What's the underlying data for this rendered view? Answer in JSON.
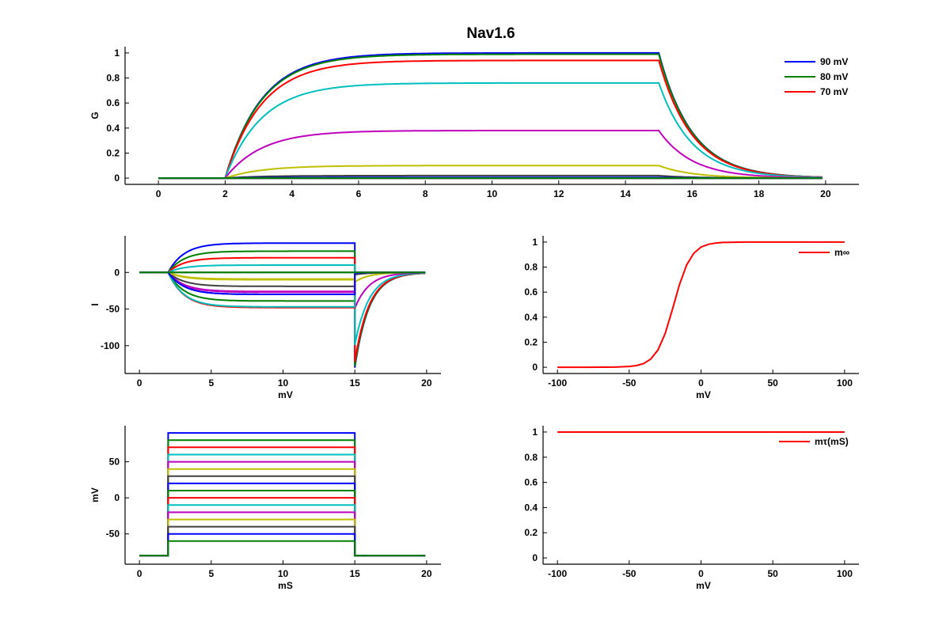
{
  "figure": {
    "title": "Nav1.6"
  },
  "colors": {
    "blue": "#0000ff",
    "green": "#008000",
    "red": "#ff0000",
    "cyan": "#00bfbf",
    "magenta": "#bf00bf",
    "yellow": "#bfbf00",
    "gray": "#404040"
  },
  "traces": [
    {
      "step_mV": 90,
      "color": "#0000ff",
      "G_ss": 1.0,
      "I_ss": 40,
      "I_tail": -130
    },
    {
      "step_mV": 80,
      "color": "#008000",
      "G_ss": 0.99,
      "I_ss": 29,
      "I_tail": -128
    },
    {
      "step_mV": 70,
      "color": "#ff0000",
      "G_ss": 0.94,
      "I_ss": 20,
      "I_tail": -122
    },
    {
      "step_mV": 60,
      "color": "#00bfbf",
      "G_ss": 0.76,
      "I_ss": 10,
      "I_tail": -99
    },
    {
      "step_mV": 50,
      "color": "#bf00bf",
      "G_ss": 0.38,
      "I_ss": -26,
      "I_tail": -49
    },
    {
      "step_mV": 40,
      "color": "#bfbf00",
      "G_ss": 0.1,
      "I_ss": -9,
      "I_tail": -13
    },
    {
      "step_mV": 30,
      "color": "#404040",
      "G_ss": 0.02,
      "I_ss": -19,
      "I_tail": -3
    },
    {
      "step_mV": 20,
      "color": "#0000ff",
      "G_ss": 0.005,
      "I_ss": -30,
      "I_tail": -1
    },
    {
      "step_mV": 10,
      "color": "#008000",
      "G_ss": 0,
      "I_ss": -39,
      "I_tail": 0
    },
    {
      "step_mV": 0,
      "color": "#ff0000",
      "G_ss": 0,
      "I_ss": -48,
      "I_tail": 0
    },
    {
      "step_mV": -10,
      "color": "#00bfbf",
      "G_ss": 0,
      "I_ss": -47,
      "I_tail": 0
    },
    {
      "step_mV": -20,
      "color": "#bf00bf",
      "G_ss": 0,
      "I_ss": -27,
      "I_tail": 0
    },
    {
      "step_mV": -30,
      "color": "#bfbf00",
      "G_ss": 0,
      "I_ss": -10,
      "I_tail": 0
    },
    {
      "step_mV": -40,
      "color": "#404040",
      "G_ss": 0,
      "I_ss": 0,
      "I_tail": 0
    },
    {
      "step_mV": -50,
      "color": "#0000ff",
      "G_ss": 0,
      "I_ss": -30,
      "I_tail": 0
    },
    {
      "step_mV": -60,
      "color": "#008000",
      "G_ss": 0,
      "I_ss": 0,
      "I_tail": 0
    }
  ],
  "protocol": {
    "holding_mV": -80,
    "step_start_ms": 2,
    "step_end_ms": 15,
    "end_ms": 20
  },
  "chart_data": [
    {
      "id": "conductance",
      "type": "line",
      "title": "Nav1.6",
      "xlabel": "",
      "ylabel": "G",
      "xlim": [
        -1,
        21
      ],
      "ylim": [
        -0.05,
        1.05
      ],
      "xticks": [
        "0",
        "2",
        "4",
        "6",
        "8",
        "10",
        "12",
        "14",
        "16",
        "18",
        "20"
      ],
      "yticks": [
        "0",
        "0.2",
        "0.4",
        "0.6",
        "0.8",
        "1"
      ],
      "legend": {
        "position": "top-right",
        "entries": [
          {
            "label": "90 mV",
            "color": "#0000ff"
          },
          {
            "label": "80 mV",
            "color": "#008000"
          },
          {
            "label": "70 mV",
            "color": "#ff0000"
          }
        ]
      },
      "grid": false
    },
    {
      "id": "current",
      "type": "line",
      "xlabel": "mV",
      "ylabel": "I",
      "xlim": [
        -1,
        21
      ],
      "ylim": [
        -138,
        50
      ],
      "xticks": [
        "0",
        "5",
        "10",
        "15",
        "20"
      ],
      "yticks": [
        "-100",
        "-50",
        "0"
      ],
      "grid": false
    },
    {
      "id": "voltage",
      "type": "line",
      "xlabel": "mS",
      "ylabel": "mV",
      "xlim": [
        -1,
        21
      ],
      "ylim": [
        -92,
        100
      ],
      "xticks": [
        "0",
        "5",
        "10",
        "15",
        "20"
      ],
      "yticks": [
        "-50",
        "0",
        "50"
      ],
      "grid": false
    },
    {
      "id": "m_inf",
      "type": "line",
      "xlabel": "mV",
      "ylabel": "",
      "xlim": [
        -110,
        110
      ],
      "ylim": [
        -0.05,
        1.05
      ],
      "xticks": [
        "-100",
        "-50",
        "0",
        "50",
        "100"
      ],
      "yticks": [
        "0",
        "0.2",
        "0.4",
        "0.6",
        "0.8",
        "1"
      ],
      "legend": {
        "position": "top-right",
        "entries": [
          {
            "label": "m∞",
            "color": "#ff0000"
          }
        ]
      },
      "series": [
        {
          "name": "m∞",
          "color": "#ff0000",
          "x": [
            -100,
            -80,
            -60,
            -50,
            -45,
            -40,
            -35,
            -30,
            -25,
            -20,
            -15,
            -10,
            -5,
            0,
            5,
            10,
            15,
            20,
            30,
            50,
            100
          ],
          "y": [
            0,
            0,
            0.001,
            0.006,
            0.013,
            0.029,
            0.065,
            0.138,
            0.269,
            0.458,
            0.661,
            0.818,
            0.911,
            0.96,
            0.982,
            0.992,
            0.997,
            0.998,
            1,
            1,
            1
          ]
        }
      ],
      "grid": false
    },
    {
      "id": "m_tau",
      "type": "line",
      "xlabel": "mV",
      "ylabel": "",
      "xlim": [
        -110,
        110
      ],
      "ylim": [
        -0.05,
        1.05
      ],
      "xticks": [
        "-100",
        "-50",
        "0",
        "50",
        "100"
      ],
      "yticks": [
        "0",
        "0.2",
        "0.4",
        "0.6",
        "0.8",
        "1"
      ],
      "legend": {
        "position": "top-right",
        "entries": [
          {
            "label": "mτ(mS)",
            "color": "#ff0000"
          }
        ]
      },
      "series": [
        {
          "name": "mτ(mS)",
          "color": "#ff0000",
          "x": [
            -100,
            100
          ],
          "y": [
            1,
            1
          ]
        }
      ],
      "grid": false
    }
  ]
}
